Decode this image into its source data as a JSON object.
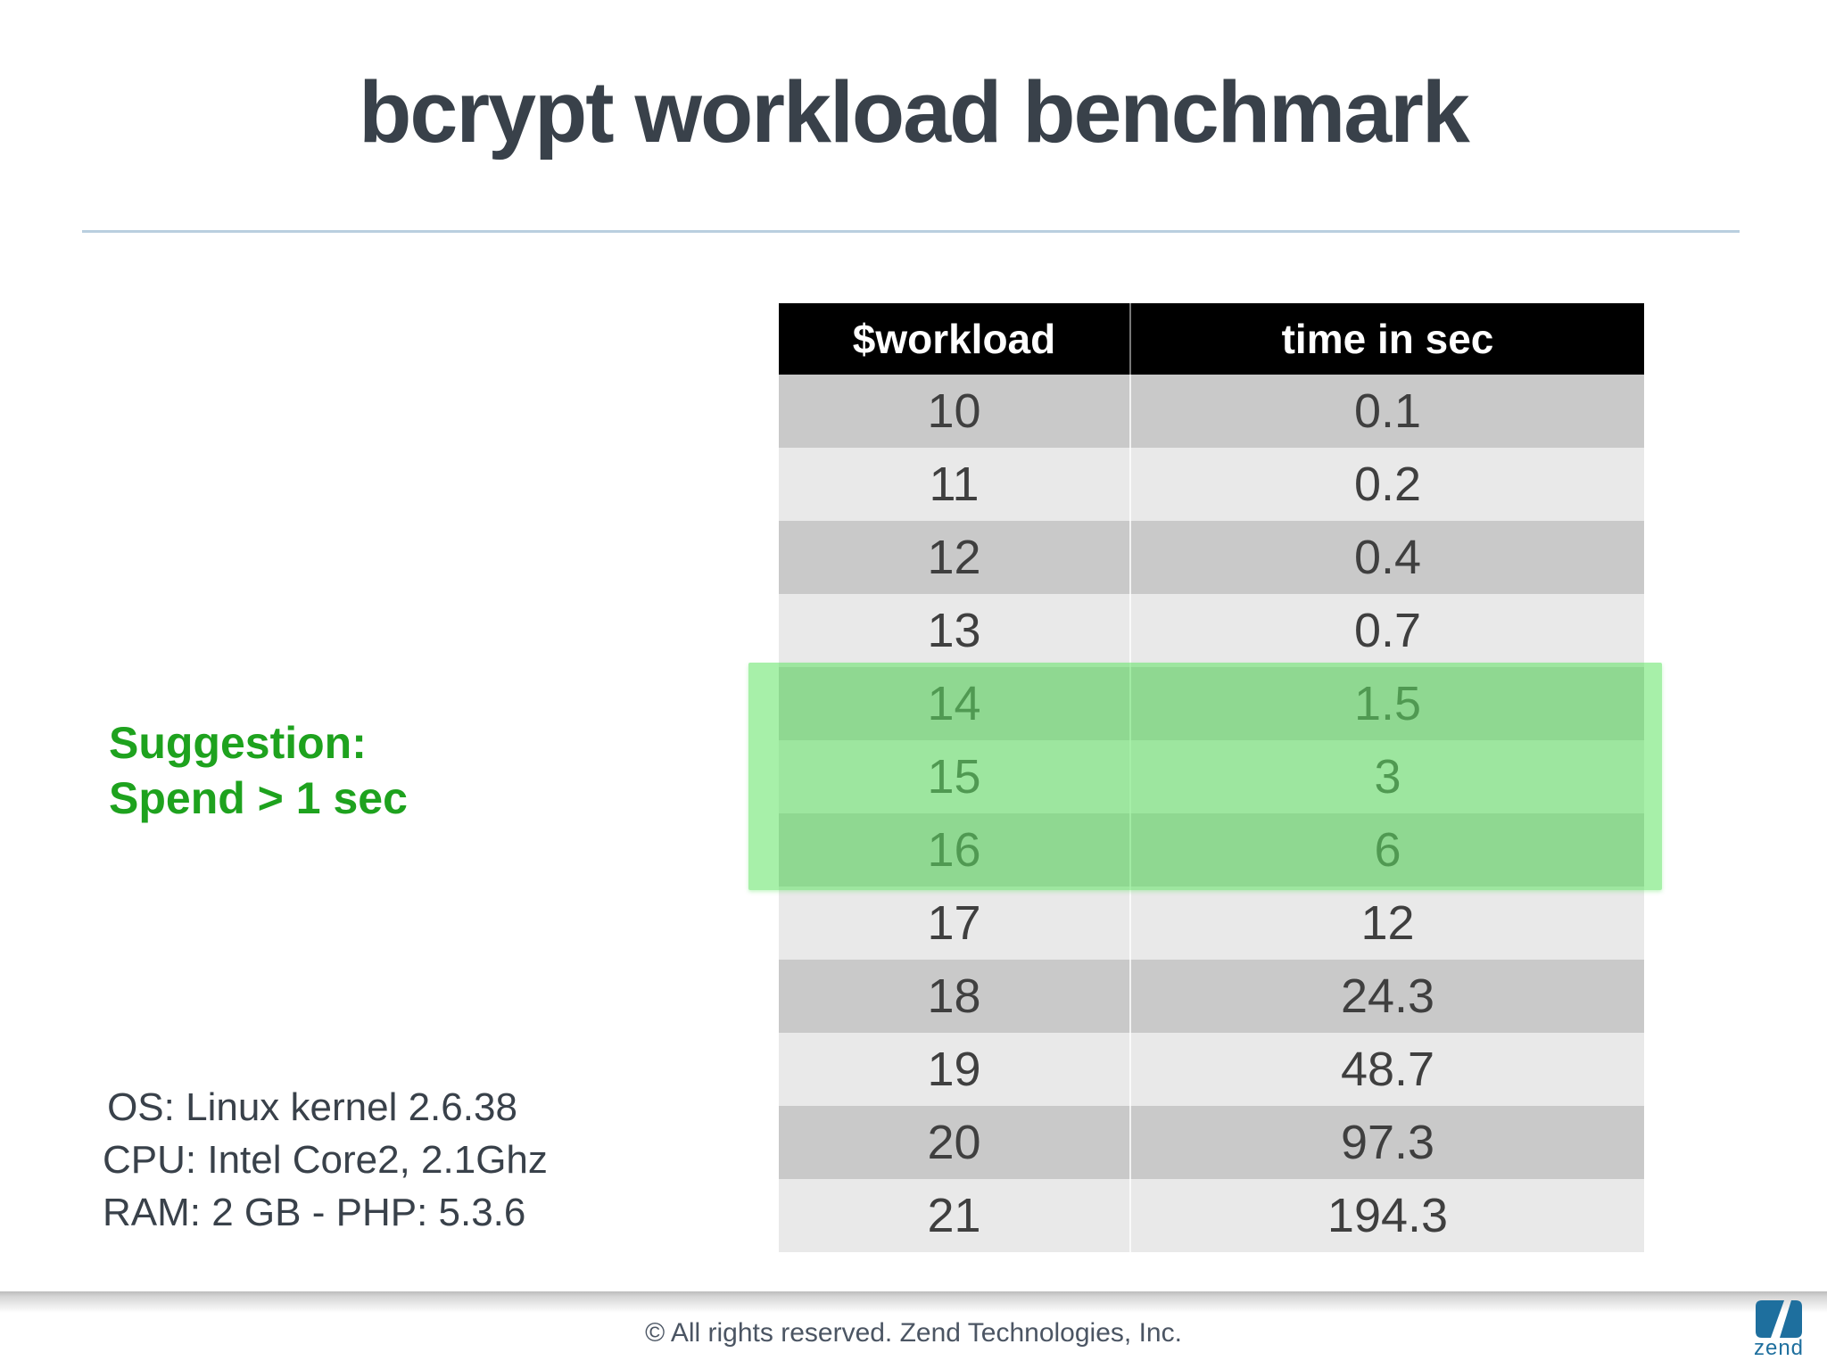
{
  "slide": {
    "title": "bcrypt workload benchmark",
    "suggestion": {
      "line1": "Suggestion:",
      "line2": "Spend > 1 sec"
    },
    "specs": {
      "line1": "OS: Linux kernel 2.6.38",
      "line2": "CPU: Intel Core2, 2.1Ghz",
      "line3": "RAM: 2 GB - PHP: 5.3.6"
    },
    "footer": {
      "copyright": "© All rights reserved. Zend Technologies, Inc.",
      "logo_word": "zend",
      "logo_icon": "zend-z-icon"
    }
  },
  "chart_data": {
    "type": "table",
    "title": "bcrypt workload benchmark",
    "columns": [
      "$workload",
      "time in sec"
    ],
    "rows": [
      [
        10,
        0.1
      ],
      [
        11,
        0.2
      ],
      [
        12,
        0.4
      ],
      [
        13,
        0.7
      ],
      [
        14,
        1.5
      ],
      [
        15,
        3
      ],
      [
        16,
        6
      ],
      [
        17,
        12
      ],
      [
        18,
        24.3
      ],
      [
        19,
        48.7
      ],
      [
        20,
        97.3
      ],
      [
        21,
        194.3
      ]
    ],
    "highlighted_workloads": [
      14,
      15,
      16
    ],
    "legend_position": "none",
    "grid": false
  },
  "colors": {
    "title_text": "#39414a",
    "title_rule": "#b9cfdf",
    "table_header_bg": "#000000",
    "table_header_text": "#ffffff",
    "row_dark": "#c9c9c9",
    "row_light": "#e9e9e9",
    "cell_text": "#3f3f3f",
    "highlight_green": "#5ee362",
    "suggestion_green": "#1ea21e",
    "footer_text": "#4b5563",
    "logo_blue": "#1e6f9e"
  }
}
